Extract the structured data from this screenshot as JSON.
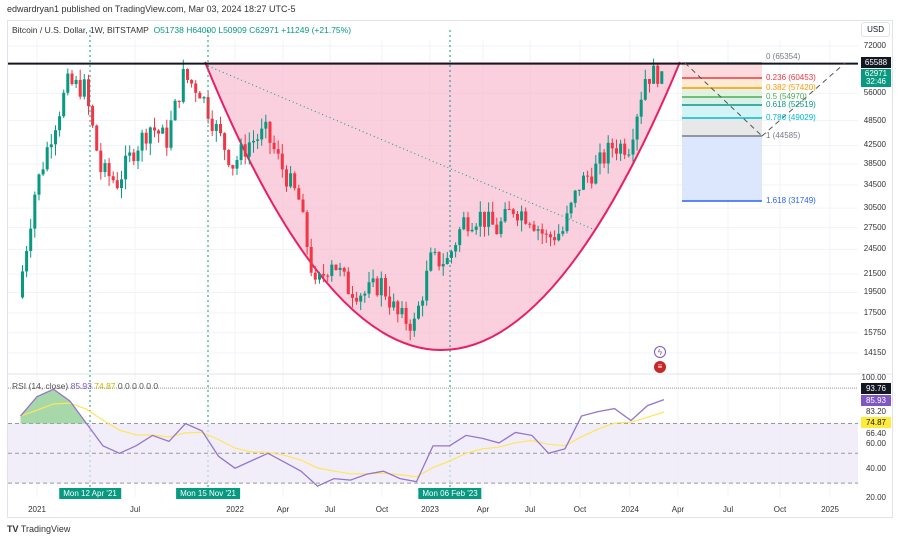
{
  "header": {
    "published": "edwardryan1 published on TradingView.com, Mar 03, 2024 18:27 UTC-5"
  },
  "legend": {
    "symbol": "Bitcoin / U.S. Dollar, 1W, BITSTAMP",
    "open": "O51738",
    "high": "H64000",
    "low": "L50909",
    "close": "C62971",
    "change": "+11249 (+21.75%)"
  },
  "rsi_legend": {
    "label": "RSI (14, close)",
    "rsi": "85.93",
    "ma": "74.87",
    "zeros": "0 0 0 0 0 0"
  },
  "currency": "USD",
  "price_badges": {
    "line": "65588",
    "last": "62971",
    "countdown": "32:46"
  },
  "rsi_badges": {
    "upper": "93.76",
    "rsi": "85.93",
    "ma": "74.87"
  },
  "time_badges": [
    "Mon 12 Apr '21",
    "Mon 15 Nov '21",
    "Mon 06 Feb '23"
  ],
  "fib": [
    {
      "label": "0 (65354)",
      "color": "#787b86"
    },
    {
      "label": "0.236 (60453)",
      "color": "#f23645"
    },
    {
      "label": "0.382 (57420)",
      "color": "#ff9800"
    },
    {
      "label": "0.5 (54970)",
      "color": "#4caf50"
    },
    {
      "label": "0.618 (52519)",
      "color": "#089981"
    },
    {
      "label": "0.786 (49029)",
      "color": "#00bcd4"
    },
    {
      "label": "1 (44585)",
      "color": "#787b86"
    },
    {
      "label": "1.618 (31749)",
      "color": "#2962ff"
    }
  ],
  "footer": {
    "brand": "TradingView"
  },
  "chart_data": [
    {
      "type": "candlestick",
      "scale": "log",
      "title": "Bitcoin / U.S. Dollar, 1W, BITSTAMP",
      "y_ticks": [
        "72000",
        "56000",
        "48500",
        "42500",
        "38500",
        "34500",
        "30500",
        "27500",
        "24500",
        "21500",
        "19500",
        "17500",
        "15750",
        "14150"
      ],
      "x_ticks": [
        "2021",
        "Jul",
        "2022",
        "Apr",
        "Jul",
        "Oct",
        "2023",
        "Apr",
        "Jul",
        "Oct",
        "2024",
        "Apr",
        "Jul",
        "Oct",
        "2025"
      ],
      "x": [
        "Dec 2020",
        "Jan 2021",
        "Feb 2021",
        "Mar 2021",
        "Apr 2021",
        "May 2021",
        "Jun 2021",
        "Jul 2021",
        "Aug 2021",
        "Sep 2021",
        "Oct 2021",
        "Nov 2021",
        "Dec 2021",
        "Jan 2022",
        "Feb 2022",
        "Mar 2022",
        "Apr 2022",
        "May 2022",
        "Jun 2022",
        "Jul 2022",
        "Aug 2022",
        "Sep 2022",
        "Oct 2022",
        "Nov 2022",
        "Dec 2022",
        "Jan 2023",
        "Feb 2023",
        "Mar 2023",
        "Apr 2023",
        "May 2023",
        "Jun 2023",
        "Jul 2023",
        "Aug 2023",
        "Sep 2023",
        "Oct 2023",
        "Nov 2023",
        "Dec 2023",
        "Jan 2024",
        "Feb 2024",
        "Mar 2024"
      ],
      "close": [
        19000,
        33100,
        45200,
        58800,
        57700,
        37300,
        35000,
        41500,
        47100,
        43800,
        61300,
        57000,
        46300,
        38500,
        43200,
        45500,
        37700,
        31800,
        19900,
        23300,
        20000,
        19400,
        20500,
        17200,
        16500,
        23100,
        23100,
        28500,
        29300,
        27200,
        30500,
        29200,
        26000,
        27000,
        34500,
        37700,
        42300,
        42600,
        61200,
        62971
      ],
      "horizontal_line": 65588,
      "annotations": [
        "cup pattern",
        "fibonacci retracement"
      ]
    },
    {
      "type": "line",
      "title": "RSI (14, close)",
      "y_ticks": [
        "100.00",
        "83.20",
        "66.40",
        "60.00",
        "40.00",
        "20.00"
      ],
      "bands": [
        30,
        50,
        70
      ],
      "rsi": [
        75,
        88,
        93,
        85,
        70,
        55,
        50,
        55,
        62,
        58,
        70,
        65,
        48,
        40,
        45,
        50,
        44,
        38,
        28,
        33,
        32,
        36,
        38,
        33,
        31,
        55,
        55,
        62,
        60,
        57,
        64,
        62,
        50,
        53,
        75,
        78,
        80,
        72,
        82,
        86
      ],
      "series": [
        {
          "name": "RSI",
          "last": 85.93
        },
        {
          "name": "MA",
          "last": 74.87
        }
      ]
    }
  ]
}
